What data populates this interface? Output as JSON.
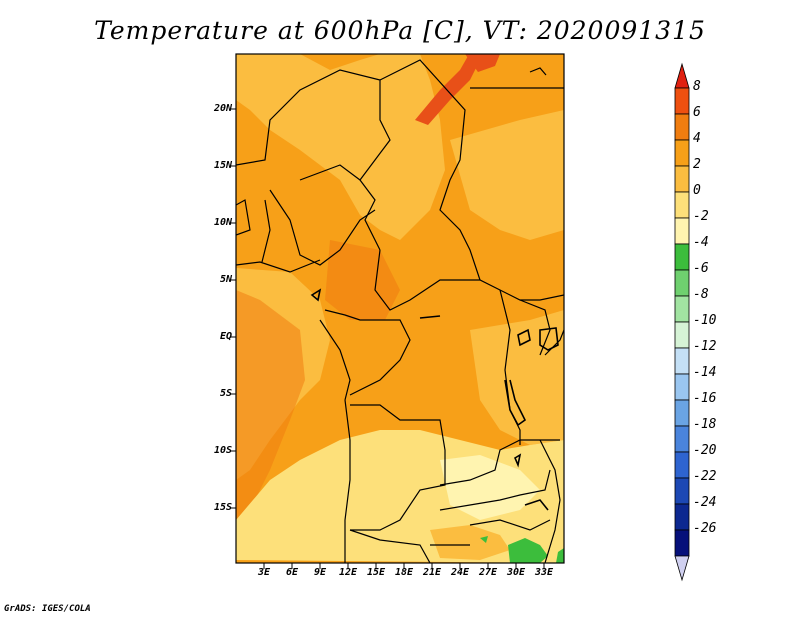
{
  "title": "Temperature at 600hPa [C], VT: 2020091315",
  "credit": "GrADS: IGES/COLA",
  "lat_labels": [
    "20N",
    "15N",
    "10N",
    "5N",
    "EQ",
    "5S",
    "10S",
    "15S"
  ],
  "lon_labels": [
    "3E",
    "6E",
    "9E",
    "12E",
    "15E",
    "18E",
    "21E",
    "24E",
    "27E",
    "30E",
    "33E"
  ],
  "colorbar": {
    "labels": [
      "8",
      "6",
      "4",
      "2",
      "0",
      "-2",
      "-4",
      "-6",
      "-8",
      "-10",
      "-12",
      "-14",
      "-16",
      "-18",
      "-20",
      "-22",
      "-24",
      "-26"
    ],
    "colors": [
      "#e02010",
      "#ee5010",
      "#f07d10",
      "#f7a018",
      "#fbbd40",
      "#fde07a",
      "#fff4b0",
      "#3cbd3c",
      "#6fd06f",
      "#a2e4a2",
      "#d6f3d6",
      "#c4e0f6",
      "#9ac6f0",
      "#6aa4e4",
      "#4a84dc",
      "#2e64d0",
      "#1c48b4",
      "#0c2890",
      "#06107a",
      "#d0d0f0"
    ]
  },
  "map": {
    "colors": {
      "warm_4_6": "#f07d10",
      "warm_2_4": "#f7a018",
      "warm_0_2": "#fbbd40",
      "cool_m2_0": "#fde07a",
      "cool_m4_m2": "#fff4b0",
      "green": "#3cbd3c",
      "hot": "#e85018"
    }
  }
}
